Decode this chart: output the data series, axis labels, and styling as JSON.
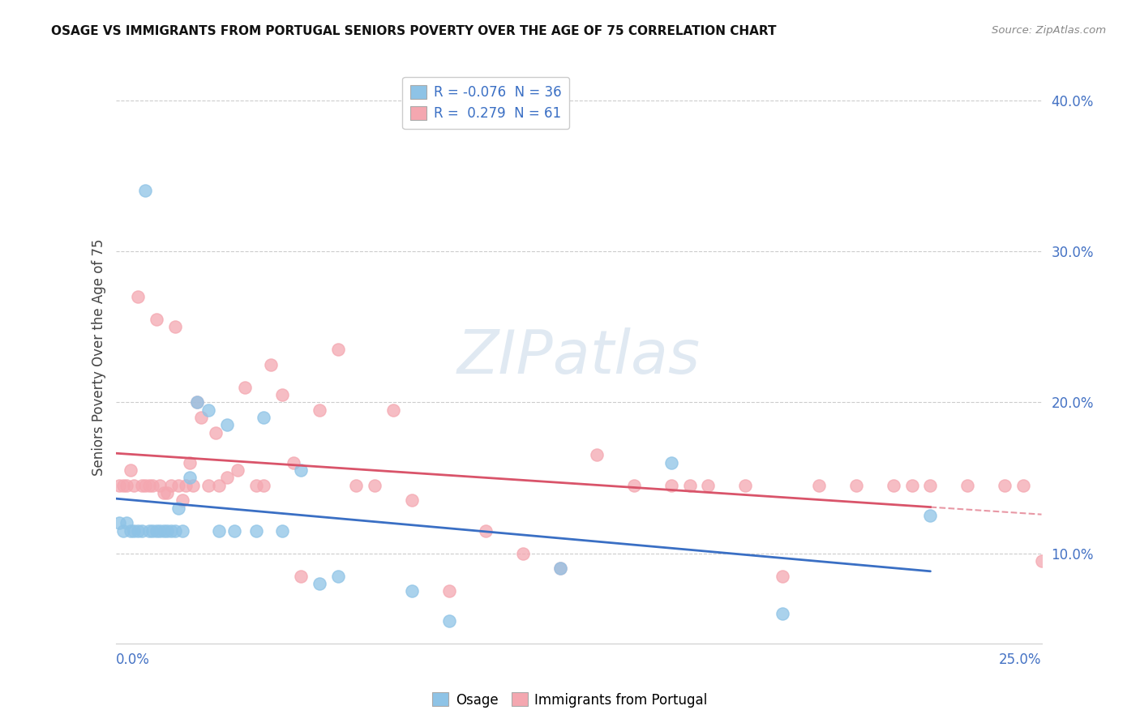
{
  "title": "OSAGE VS IMMIGRANTS FROM PORTUGAL SENIORS POVERTY OVER THE AGE OF 75 CORRELATION CHART",
  "source": "Source: ZipAtlas.com",
  "ylabel": "Seniors Poverty Over the Age of 75",
  "xlim": [
    0.0,
    0.25
  ],
  "ylim": [
    0.04,
    0.42
  ],
  "yticks": [
    0.1,
    0.2,
    0.3,
    0.4
  ],
  "ytick_labels": [
    "10.0%",
    "20.0%",
    "30.0%",
    "40.0%"
  ],
  "legend_osage": "R = -0.076  N = 36",
  "legend_portugal": "R =  0.279  N = 61",
  "osage_color": "#8ec3e6",
  "portugal_color": "#f4a7b0",
  "osage_line_color": "#3a6fc4",
  "portugal_line_color": "#d9546a",
  "background_color": "#ffffff",
  "osage_r": -0.076,
  "portugal_r": 0.279,
  "osage_x": [
    0.001,
    0.002,
    0.003,
    0.004,
    0.005,
    0.006,
    0.007,
    0.008,
    0.009,
    0.01,
    0.011,
    0.012,
    0.013,
    0.014,
    0.015,
    0.016,
    0.017,
    0.018,
    0.02,
    0.022,
    0.025,
    0.028,
    0.03,
    0.032,
    0.038,
    0.04,
    0.045,
    0.05,
    0.055,
    0.06,
    0.08,
    0.09,
    0.12,
    0.15,
    0.18,
    0.22
  ],
  "osage_y": [
    0.12,
    0.115,
    0.12,
    0.115,
    0.115,
    0.115,
    0.115,
    0.34,
    0.115,
    0.115,
    0.115,
    0.115,
    0.115,
    0.115,
    0.115,
    0.115,
    0.13,
    0.115,
    0.15,
    0.2,
    0.195,
    0.115,
    0.185,
    0.115,
    0.115,
    0.19,
    0.115,
    0.155,
    0.08,
    0.085,
    0.075,
    0.055,
    0.09,
    0.16,
    0.06,
    0.125
  ],
  "portugal_x": [
    0.001,
    0.002,
    0.003,
    0.004,
    0.005,
    0.006,
    0.007,
    0.008,
    0.009,
    0.01,
    0.011,
    0.012,
    0.013,
    0.014,
    0.015,
    0.016,
    0.017,
    0.018,
    0.019,
    0.02,
    0.021,
    0.022,
    0.023,
    0.025,
    0.027,
    0.028,
    0.03,
    0.033,
    0.035,
    0.038,
    0.04,
    0.042,
    0.045,
    0.048,
    0.05,
    0.055,
    0.06,
    0.065,
    0.07,
    0.075,
    0.08,
    0.09,
    0.1,
    0.11,
    0.12,
    0.13,
    0.14,
    0.15,
    0.155,
    0.16,
    0.17,
    0.18,
    0.19,
    0.2,
    0.21,
    0.215,
    0.22,
    0.23,
    0.24,
    0.245,
    0.25
  ],
  "portugal_y": [
    0.145,
    0.145,
    0.145,
    0.155,
    0.145,
    0.27,
    0.145,
    0.145,
    0.145,
    0.145,
    0.255,
    0.145,
    0.14,
    0.14,
    0.145,
    0.25,
    0.145,
    0.135,
    0.145,
    0.16,
    0.145,
    0.2,
    0.19,
    0.145,
    0.18,
    0.145,
    0.15,
    0.155,
    0.21,
    0.145,
    0.145,
    0.225,
    0.205,
    0.16,
    0.085,
    0.195,
    0.235,
    0.145,
    0.145,
    0.195,
    0.135,
    0.075,
    0.115,
    0.1,
    0.09,
    0.165,
    0.145,
    0.145,
    0.145,
    0.145,
    0.145,
    0.085,
    0.145,
    0.145,
    0.145,
    0.145,
    0.145,
    0.145,
    0.145,
    0.145,
    0.095
  ]
}
